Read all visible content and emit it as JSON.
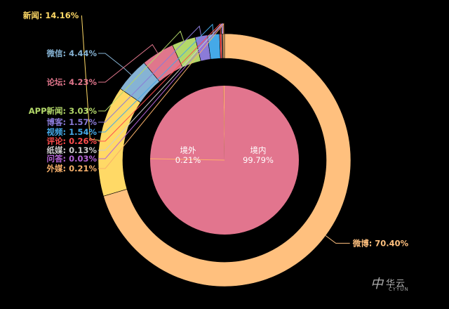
{
  "chart_data": [
    {
      "type": "pie",
      "subtype": "donut",
      "label_format": "{name}: {value}%",
      "slices": [
        {
          "name": "微博",
          "value": 70.4,
          "color": "#ffc07e"
        },
        {
          "name": "新闻",
          "value": 14.16,
          "color": "#ffd966"
        },
        {
          "name": "微信",
          "value": 4.44,
          "color": "#86b3d4"
        },
        {
          "name": "论坛",
          "value": 4.23,
          "color": "#e0768c"
        },
        {
          "name": "APP新闻",
          "value": 3.03,
          "color": "#b3d86a"
        },
        {
          "name": "博客",
          "value": 1.57,
          "color": "#8b7bd8"
        },
        {
          "name": "视频",
          "value": 1.54,
          "color": "#45a9e8"
        },
        {
          "name": "评论",
          "value": 0.26,
          "color": "#ff4e4e"
        },
        {
          "name": "纸媒",
          "value": 0.13,
          "color": "#cccccc"
        },
        {
          "name": "问答",
          "value": 0.03,
          "color": "#b565d6"
        },
        {
          "name": "外媒",
          "value": 0.21,
          "color": "#f7b06b"
        }
      ],
      "label_values": [
        "70.40%",
        "14.16%",
        "4.44%",
        "4.23%",
        "3.03%",
        "1.57%",
        "1.54%",
        "0.26%",
        "0.13%",
        "0.03%",
        "0.21%"
      ]
    },
    {
      "type": "pie",
      "subtype": "inner-pie",
      "slices": [
        {
          "name": "境内",
          "value": 99.79,
          "label_value": "99.79%",
          "color": "#e2758e"
        },
        {
          "name": "境外",
          "value": 0.21,
          "label_value": "0.21%",
          "color": "#ffb169"
        }
      ]
    }
  ],
  "watermark": {
    "text": "华云",
    "subtext": "CYYUN",
    "mark": "中"
  },
  "colors": {
    "background": "#000000",
    "leader_line": "#ffffff"
  }
}
